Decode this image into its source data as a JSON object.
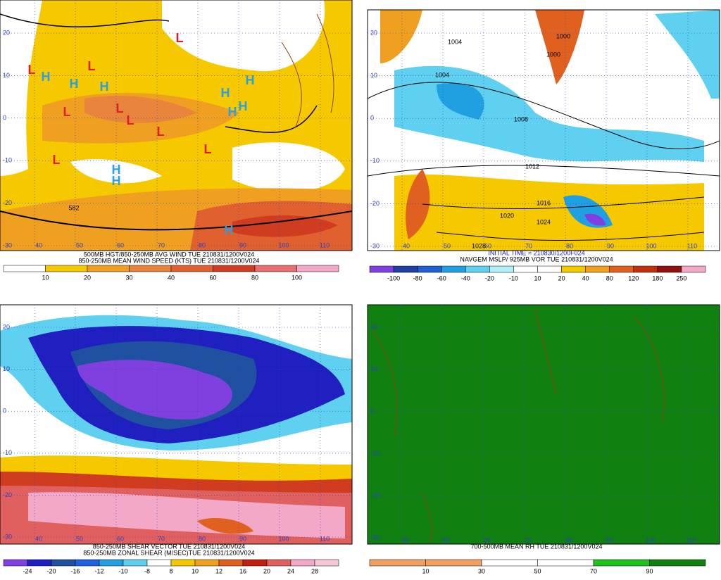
{
  "panels": [
    {
      "captions": [
        "500MB HGT/850-250MB AVG WIND TUE 210831/1200V024",
        "850-250MB MEAN WIND SPEED (KTS) TUE 210831/1200V024"
      ],
      "colorbar": {
        "labels": [
          10,
          20,
          30,
          40,
          60,
          80,
          100
        ],
        "colors": [
          "#ffffff",
          "#f5c800",
          "#f0a020",
          "#e8843c",
          "#e06030",
          "#d03c20",
          "#e87070",
          "#f4a8c8"
        ]
      },
      "lat_labels": [
        20,
        10,
        0,
        -10,
        -20,
        -30
      ],
      "lon_labels": [
        40,
        50,
        60,
        70,
        80,
        90,
        100,
        110
      ],
      "map_labels": [
        "L",
        "L",
        "L",
        "L",
        "L",
        "L",
        "L",
        "L",
        "L",
        "H",
        "H",
        "H",
        "H",
        "H",
        "H",
        "H",
        "H",
        "H",
        "H",
        "582"
      ]
    },
    {
      "captions": [
        "INITIAL TIME = 210830/1200F024",
        "NAVGEM MSLP/ 925MB VOR TUE 210831/1200V024"
      ],
      "colorbar": {
        "labels": [
          -100,
          -80,
          -60,
          -40,
          -20,
          -10,
          10,
          20,
          40,
          80,
          120,
          180,
          250
        ],
        "colors": [
          "#8040e0",
          "#2040a0",
          "#2060d0",
          "#20a0e0",
          "#60d0f0",
          "#b0f0f8",
          "#ffffff",
          "#ffffff",
          "#f5c800",
          "#f0a020",
          "#e06020",
          "#c03010",
          "#901010",
          "#f4a8c8"
        ]
      },
      "lat_labels": [
        20,
        10,
        0,
        -10,
        -20,
        -30
      ],
      "lon_labels": [
        40,
        50,
        60,
        70,
        80,
        90,
        100,
        110
      ],
      "map_labels": [
        "1000",
        "1004",
        "1000",
        "1004",
        "1008",
        "1012",
        "1016",
        "1020",
        "1024",
        "1028"
      ]
    },
    {
      "captions": [
        "850-250MB SHEAR VECTOR TUE 210831/1200V024",
        "850-250MB ZONAL SHEAR (M/SEC)TUE 210831/1200V024"
      ],
      "colorbar": {
        "labels": [
          -24,
          -20,
          -16,
          -12,
          -10,
          -8,
          8,
          10,
          12,
          16,
          20,
          24,
          28
        ],
        "colors": [
          "#8040e0",
          "#2020c0",
          "#2050a0",
          "#2060e0",
          "#20a0e0",
          "#60d0f0",
          "#ffffff",
          "#f5c800",
          "#f0a020",
          "#e06020",
          "#c02010",
          "#e06060",
          "#f4a8c8",
          "#f8c8d8"
        ]
      },
      "lat_labels": [
        20,
        10,
        0,
        -10,
        -20,
        -30
      ],
      "lon_labels": [
        40,
        50,
        60,
        70,
        80,
        90,
        100,
        110
      ],
      "map_labels": []
    },
    {
      "captions": [
        "700-500MB MEAN RH TUE 210831/1200V024"
      ],
      "colorbar": {
        "labels": [
          10,
          30,
          50,
          70,
          90
        ],
        "colors": [
          "#f0a060",
          "#f0a060",
          "#ffffff",
          "#ffffff",
          "#20c020",
          "#108010"
        ]
      },
      "lat_labels": [
        20,
        10,
        0,
        -10,
        -20,
        -30
      ],
      "lon_labels": [
        40,
        50,
        60,
        70,
        80,
        90,
        100,
        110
      ],
      "map_labels": []
    }
  ]
}
